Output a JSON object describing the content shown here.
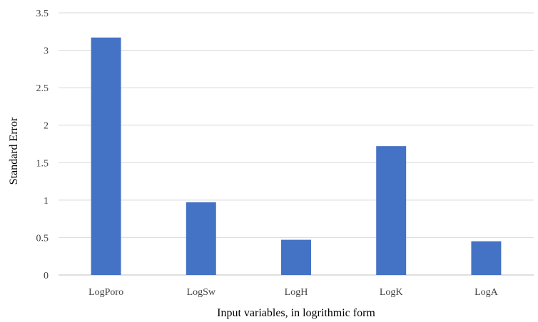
{
  "chart_data": {
    "type": "bar",
    "title": "",
    "xlabel": "Input variables, in logrithmic form",
    "ylabel": "Standard Error",
    "categories": [
      "LogPoro",
      "LogSw",
      "LogH",
      "LogK",
      "LogA"
    ],
    "values": [
      3.17,
      0.97,
      0.47,
      1.72,
      0.45
    ],
    "ylim": [
      0,
      3.5
    ],
    "yticks": [
      "0",
      "0.5",
      "1",
      "1.5",
      "2",
      "2.5",
      "3",
      "3.5"
    ],
    "grid": true,
    "legend": "none",
    "bar_color": "#4472c4"
  }
}
